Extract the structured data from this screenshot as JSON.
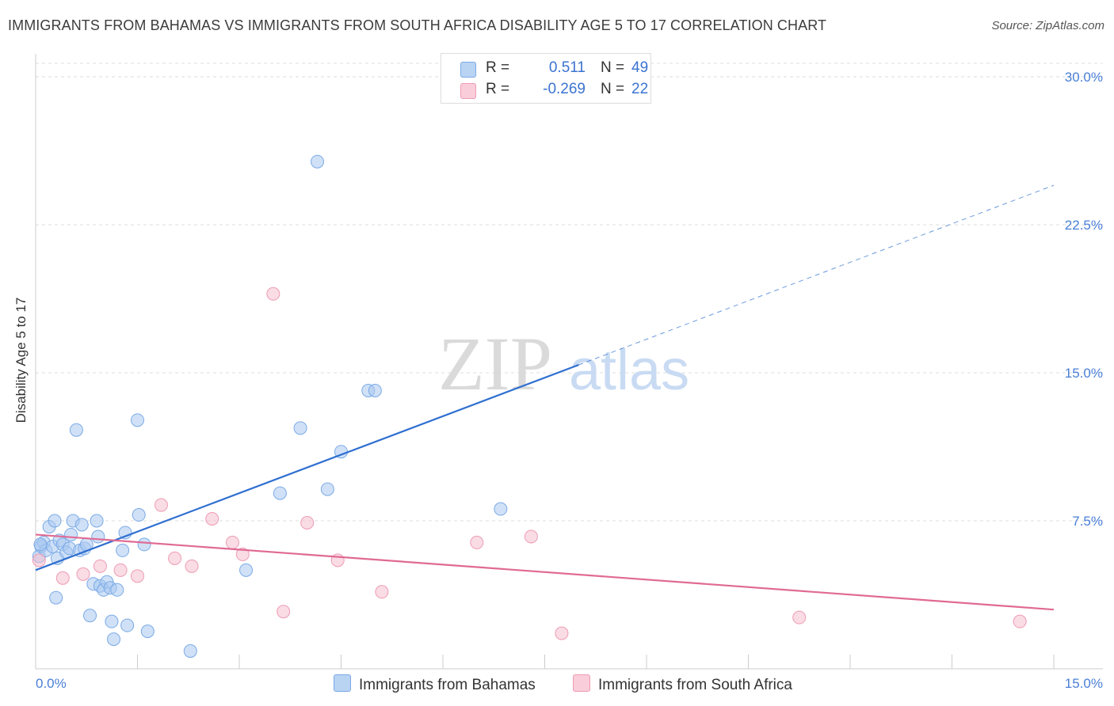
{
  "title": "IMMIGRANTS FROM BAHAMAS VS IMMIGRANTS FROM SOUTH AFRICA DISABILITY AGE 5 TO 17 CORRELATION CHART",
  "source": "Source: ZipAtlas.com",
  "watermark": {
    "zip": "ZIP",
    "atlas": "atlas"
  },
  "colors": {
    "blue_fill": "#a9c8f0",
    "blue_stroke": "#7aaae6",
    "blue_line": "#2f6fd0",
    "pink_fill": "#f6bfcf",
    "pink_stroke": "#ee9bb4",
    "pink_line": "#e06a94",
    "tick_text": "#4a7fd6",
    "grid": "#dddddd"
  },
  "legend": {
    "rows": [
      {
        "r_label": "R =",
        "r_value": "0.511",
        "n_label": "N =",
        "n_value": "49",
        "color": "#a9c8f0"
      },
      {
        "r_label": "R =",
        "r_value": "-0.269",
        "n_label": "N =",
        "n_value": "22",
        "color": "#f6bfcf"
      }
    ]
  },
  "bottom_legend": [
    {
      "label": "Immigrants from Bahamas",
      "color": "#a9c8f0"
    },
    {
      "label": "Immigrants from South Africa",
      "color": "#f6bfcf"
    }
  ],
  "chart_data": {
    "type": "scatter",
    "title": "IMMIGRANTS FROM BAHAMAS VS IMMIGRANTS FROM SOUTH AFRICA DISABILITY AGE 5 TO 17 CORRELATION CHART",
    "xlabel": "",
    "ylabel": "Disability Age 5 to 17",
    "xlim": [
      0,
      15
    ],
    "ylim": [
      0,
      30
    ],
    "x_tick_labels": [
      "0.0%",
      "15.0%"
    ],
    "y_ticks": [
      7.5,
      15.0,
      22.5,
      30.0
    ],
    "y_tick_labels": [
      "7.5%",
      "15.0%",
      "22.5%",
      "30.0%"
    ],
    "grid": true,
    "legend_position": "top-center",
    "series": [
      {
        "name": "Immigrants from Bahamas",
        "points": [
          [
            0.05,
            5.7
          ],
          [
            0.08,
            6.2
          ],
          [
            0.12,
            6.4
          ],
          [
            0.15,
            6.0
          ],
          [
            0.2,
            7.2
          ],
          [
            0.25,
            6.2
          ],
          [
            0.28,
            7.5
          ],
          [
            0.32,
            5.6
          ],
          [
            0.35,
            6.5
          ],
          [
            0.4,
            6.3
          ],
          [
            0.45,
            5.9
          ],
          [
            0.5,
            6.1
          ],
          [
            0.52,
            6.8
          ],
          [
            0.55,
            7.5
          ],
          [
            0.6,
            12.1
          ],
          [
            0.65,
            6.0
          ],
          [
            0.68,
            7.3
          ],
          [
            0.72,
            6.1
          ],
          [
            0.75,
            6.3
          ],
          [
            0.8,
            2.7
          ],
          [
            0.85,
            4.3
          ],
          [
            0.9,
            7.5
          ],
          [
            0.92,
            6.7
          ],
          [
            0.95,
            4.2
          ],
          [
            1.0,
            4.0
          ],
          [
            1.05,
            4.4
          ],
          [
            1.1,
            4.1
          ],
          [
            1.12,
            2.4
          ],
          [
            1.15,
            1.5
          ],
          [
            1.2,
            4.0
          ],
          [
            1.28,
            6.0
          ],
          [
            1.32,
            6.9
          ],
          [
            1.35,
            2.2
          ],
          [
            1.5,
            12.6
          ],
          [
            1.52,
            7.8
          ],
          [
            1.6,
            6.3
          ],
          [
            1.65,
            1.9
          ],
          [
            2.28,
            0.9
          ],
          [
            3.1,
            5.0
          ],
          [
            3.6,
            8.9
          ],
          [
            3.9,
            12.2
          ],
          [
            4.15,
            25.7
          ],
          [
            4.3,
            9.1
          ],
          [
            4.5,
            11.0
          ],
          [
            4.9,
            14.1
          ],
          [
            5.0,
            14.1
          ],
          [
            6.85,
            8.1
          ],
          [
            0.3,
            3.6
          ],
          [
            0.07,
            6.3
          ]
        ]
      },
      {
        "name": "Immigrants from South Africa",
        "points": [
          [
            0.05,
            5.5
          ],
          [
            0.4,
            4.6
          ],
          [
            0.7,
            4.8
          ],
          [
            0.95,
            5.2
          ],
          [
            1.25,
            5.0
          ],
          [
            1.5,
            4.7
          ],
          [
            1.85,
            8.3
          ],
          [
            2.05,
            5.6
          ],
          [
            2.3,
            5.2
          ],
          [
            2.6,
            7.6
          ],
          [
            2.9,
            6.4
          ],
          [
            3.05,
            5.8
          ],
          [
            3.5,
            19.0
          ],
          [
            3.65,
            2.9
          ],
          [
            4.0,
            7.4
          ],
          [
            4.45,
            5.5
          ],
          [
            5.1,
            3.9
          ],
          [
            6.5,
            6.4
          ],
          [
            7.3,
            6.7
          ],
          [
            7.75,
            1.8
          ],
          [
            11.25,
            2.6
          ],
          [
            14.5,
            2.4
          ]
        ]
      }
    ],
    "trend_lines": [
      {
        "series": "Immigrants from Bahamas",
        "x_start": 0.0,
        "y_start": 5.0,
        "x_solid_end": 8.0,
        "y_solid_end": 15.4,
        "x_dash_end": 15.0,
        "y_dash_end": 24.5
      },
      {
        "series": "Immigrants from South Africa",
        "x_start": 0.0,
        "y_start": 6.8,
        "x_end": 15.0,
        "y_end": 3.0
      }
    ]
  }
}
